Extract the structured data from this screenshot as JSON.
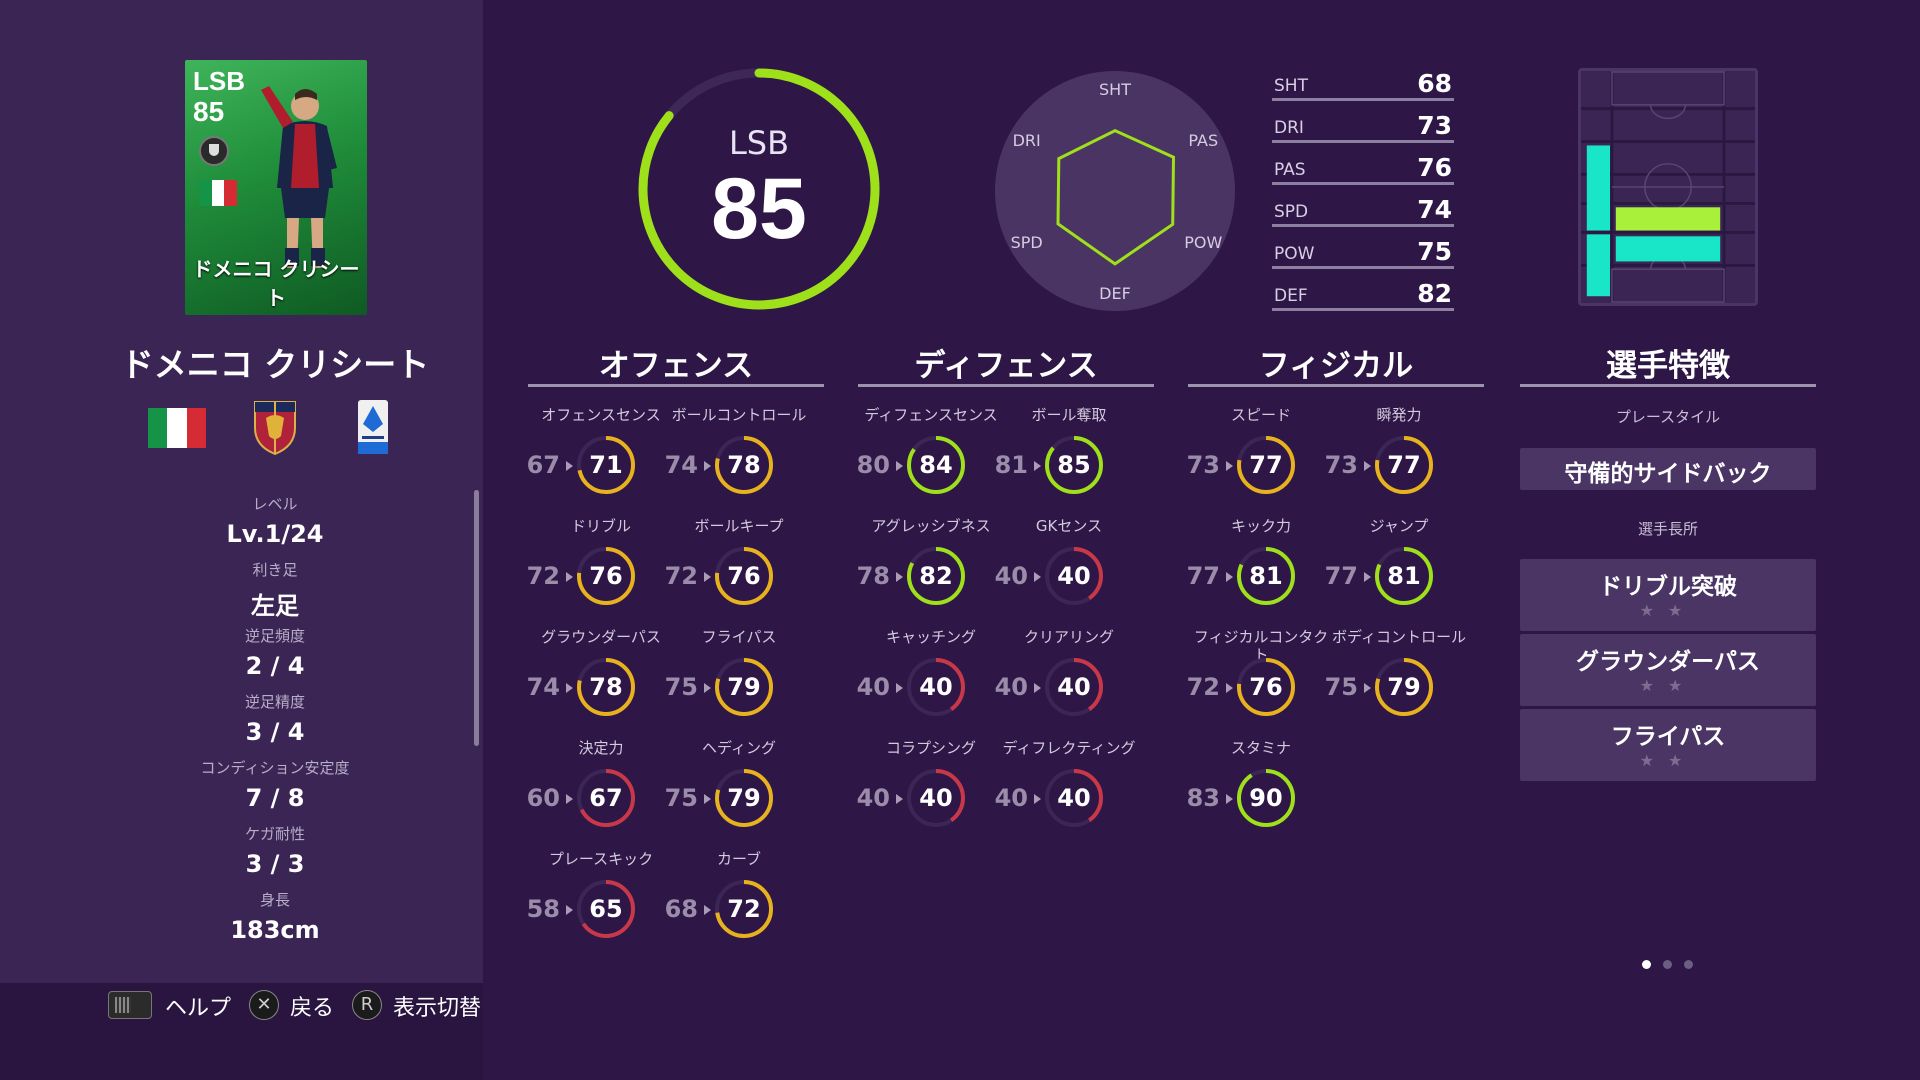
{
  "card": {
    "position": "LSB",
    "rating": "85",
    "name": "ドメニコ クリシート"
  },
  "player": {
    "name": "ドメニコ クリシート",
    "info": [
      {
        "label": "レベル",
        "value": "Lv.1/24"
      },
      {
        "label": "利き足",
        "value": "左足"
      },
      {
        "label": "逆足頻度",
        "value": "2 / 4"
      },
      {
        "label": "逆足精度",
        "value": "3 / 4"
      },
      {
        "label": "コンディション安定度",
        "value": "7 / 8"
      },
      {
        "label": "ケガ耐性",
        "value": "3 / 3"
      },
      {
        "label": "身長",
        "value": "183cm"
      }
    ]
  },
  "footer": {
    "help_label": "ヘルプ",
    "back_label": "戻る",
    "back_glyph": "✕",
    "toggle_label": "表示切替",
    "toggle_glyph": "R"
  },
  "overall": {
    "position": "LSB",
    "rating": "85"
  },
  "radar": {
    "labels": [
      "SHT",
      "PAS",
      "POW",
      "DEF",
      "SPD",
      "DRI"
    ],
    "values": [
      68,
      76,
      75,
      82,
      74,
      73
    ]
  },
  "abilities": [
    {
      "name": "SHT",
      "value": "68"
    },
    {
      "name": "DRI",
      "value": "73"
    },
    {
      "name": "PAS",
      "value": "76"
    },
    {
      "name": "SPD",
      "value": "74"
    },
    {
      "name": "POW",
      "value": "75"
    },
    {
      "name": "DEF",
      "value": "82"
    }
  ],
  "sections": {
    "offense": {
      "title": "オフェンス",
      "stats": [
        {
          "label": "オフェンスセンス",
          "prev": "67",
          "value": "71"
        },
        {
          "label": "ボールコントロール",
          "prev": "74",
          "value": "78"
        },
        {
          "label": "ドリブル",
          "prev": "72",
          "value": "76"
        },
        {
          "label": "ボールキープ",
          "prev": "72",
          "value": "76"
        },
        {
          "label": "グラウンダーパス",
          "prev": "74",
          "value": "78"
        },
        {
          "label": "フライパス",
          "prev": "75",
          "value": "79"
        },
        {
          "label": "決定力",
          "prev": "60",
          "value": "67"
        },
        {
          "label": "ヘディング",
          "prev": "75",
          "value": "79"
        },
        {
          "label": "プレースキック",
          "prev": "58",
          "value": "65"
        },
        {
          "label": "カーブ",
          "prev": "68",
          "value": "72"
        }
      ]
    },
    "defense": {
      "title": "ディフェンス",
      "stats": [
        {
          "label": "ディフェンスセンス",
          "prev": "80",
          "value": "84"
        },
        {
          "label": "ボール奪取",
          "prev": "81",
          "value": "85"
        },
        {
          "label": "アグレッシブネス",
          "prev": "78",
          "value": "82"
        },
        {
          "label": "GKセンス",
          "prev": "40",
          "value": "40"
        },
        {
          "label": "キャッチング",
          "prev": "40",
          "value": "40"
        },
        {
          "label": "クリアリング",
          "prev": "40",
          "value": "40"
        },
        {
          "label": "コラプシング",
          "prev": "40",
          "value": "40"
        },
        {
          "label": "ディフレクティング",
          "prev": "40",
          "value": "40"
        }
      ]
    },
    "physical": {
      "title": "フィジカル",
      "stats": [
        {
          "label": "スピード",
          "prev": "73",
          "value": "77"
        },
        {
          "label": "瞬発力",
          "prev": "73",
          "value": "77"
        },
        {
          "label": "キック力",
          "prev": "77",
          "value": "81"
        },
        {
          "label": "ジャンプ",
          "prev": "77",
          "value": "81"
        },
        {
          "label": "フィジカルコンタクト",
          "prev": "72",
          "value": "76"
        },
        {
          "label": "ボディコントロール",
          "prev": "75",
          "value": "79"
        },
        {
          "label": "スタミナ",
          "prev": "83",
          "value": "90"
        }
      ]
    },
    "features": {
      "title": "選手特徴",
      "playstyle_label": "プレースタイル",
      "playstyle": "守備的サイドバック",
      "skills_label": "選手長所",
      "skills": [
        {
          "name": "ドリブル突破",
          "stars": "★★"
        },
        {
          "name": "グラウンダーパス",
          "stars": "★★"
        },
        {
          "name": "フライパス",
          "stars": "★★"
        }
      ]
    }
  },
  "colors": {
    "ring_green": "#9ee01a",
    "ring_yellow": "#e8b21e",
    "ring_red": "#c93848",
    "radar_line": "#9ee01a",
    "heat_cyan": "#19e6c8",
    "heat_lime": "#a8f03a",
    "italy_green": "#159447",
    "italy_white": "#ffffff",
    "italy_red": "#d42b35"
  },
  "pagination": {
    "pages": 3,
    "current": 1
  }
}
